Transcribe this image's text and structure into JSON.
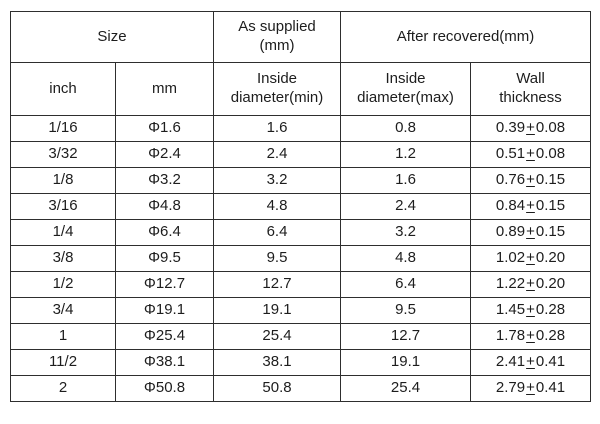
{
  "header": {
    "size": "Size",
    "inch": "inch",
    "mm": "mm",
    "as_supplied": {
      "line1": "As supplied",
      "line2": "(mm)"
    },
    "after_recovered": "After recovered(mm)",
    "inside_min": {
      "line1": "Inside",
      "line2": "diameter(min)"
    },
    "inside_max": {
      "line1": "Inside",
      "line2": "diameter(max)"
    },
    "wall": {
      "line1": "Wall",
      "line2": "thickness"
    }
  },
  "symbols": {
    "plus_minus": "+"
  },
  "rows": [
    {
      "inch": "1/16",
      "mm": "Φ1.6",
      "supplied_inside_min": "1.6",
      "recovered_inside_max": "0.8",
      "wall_base": "0.39",
      "wall_tol": "0.08"
    },
    {
      "inch": "3/32",
      "mm": "Φ2.4",
      "supplied_inside_min": "2.4",
      "recovered_inside_max": "1.2",
      "wall_base": "0.51",
      "wall_tol": "0.08"
    },
    {
      "inch": "1/8",
      "mm": "Φ3.2",
      "supplied_inside_min": "3.2",
      "recovered_inside_max": "1.6",
      "wall_base": "0.76",
      "wall_tol": "0.15"
    },
    {
      "inch": "3/16",
      "mm": "Φ4.8",
      "supplied_inside_min": "4.8",
      "recovered_inside_max": "2.4",
      "wall_base": "0.84",
      "wall_tol": "0.15"
    },
    {
      "inch": "1/4",
      "mm": "Φ6.4",
      "supplied_inside_min": "6.4",
      "recovered_inside_max": "3.2",
      "wall_base": "0.89",
      "wall_tol": "0.15"
    },
    {
      "inch": "3/8",
      "mm": "Φ9.5",
      "supplied_inside_min": "9.5",
      "recovered_inside_max": "4.8",
      "wall_base": "1.02",
      "wall_tol": "0.20"
    },
    {
      "inch": "1/2",
      "mm": "Φ12.7",
      "supplied_inside_min": "12.7",
      "recovered_inside_max": "6.4",
      "wall_base": "1.22",
      "wall_tol": "0.20"
    },
    {
      "inch": "3/4",
      "mm": "Φ19.1",
      "supplied_inside_min": "19.1",
      "recovered_inside_max": "9.5",
      "wall_base": "1.45",
      "wall_tol": "0.28"
    },
    {
      "inch": "1",
      "mm": "Φ25.4",
      "supplied_inside_min": "25.4",
      "recovered_inside_max": "12.7",
      "wall_base": "1.78",
      "wall_tol": "0.28"
    },
    {
      "inch": "11/2",
      "mm": "Φ38.1",
      "supplied_inside_min": "38.1",
      "recovered_inside_max": "19.1",
      "wall_base": "2.41",
      "wall_tol": "0.41"
    },
    {
      "inch": "2",
      "mm": "Φ50.8",
      "supplied_inside_min": "50.8",
      "recovered_inside_max": "25.4",
      "wall_base": "2.79",
      "wall_tol": "0.41"
    }
  ],
  "colors": {
    "border": "#2e2e2e",
    "text": "#1d1d1d",
    "background": "#ffffff"
  }
}
